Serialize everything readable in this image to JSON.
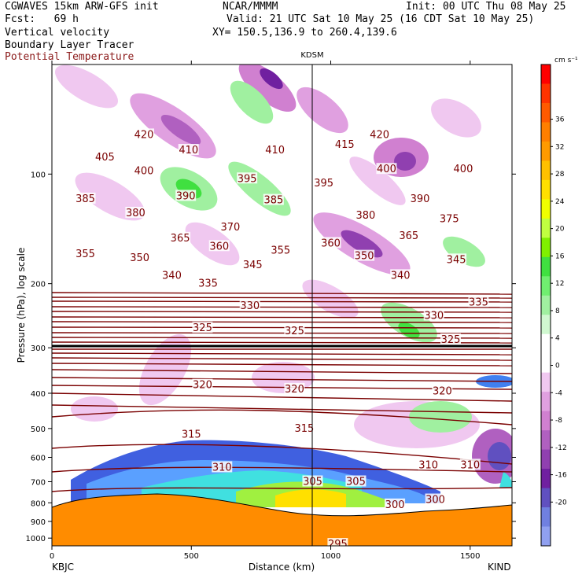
{
  "header": {
    "model": "CGWAVES 15km ARW-GFS init",
    "org": "NCAR/MMMM",
    "init": "Init: 00 UTC Thu 08 May 25",
    "fcst": "Fcst:   69 h",
    "valid": "Valid: 21 UTC Sat 10 May 25 (16 CDT Sat 10 May 25)",
    "field1": "Vertical velocity",
    "field2": "Boundary Layer Tracer",
    "field3": "Potential Temperature",
    "xy": "XY= 150.5,136.9 to 260.4,139.6",
    "field3_color": "#8b1a1a"
  },
  "chart_data": {
    "type": "cross-section",
    "xlabel": "Distance (km)",
    "ylabel": "Pressure (hPa), log scale",
    "x_range": [
      0,
      1650
    ],
    "x_ticks": [
      0,
      500,
      1000,
      1500
    ],
    "y_range_hpa": [
      1050,
      50
    ],
    "y_ticks": [
      100,
      200,
      300,
      400,
      500,
      600,
      700,
      800,
      900,
      1000
    ],
    "station_left": "KBJC",
    "station_right": "KIND",
    "station_mid": "KDSM",
    "station_mid_km": 930,
    "colorbar_unit": "cm s⁻¹",
    "colorbar_ticks": [
      36,
      32,
      28,
      24,
      20,
      16,
      12,
      8,
      4,
      0,
      -4,
      -8,
      -12,
      -16,
      -20
    ],
    "colorbar_colors": [
      "#ff0000",
      "#ff3300",
      "#ff5a00",
      "#ff7f00",
      "#ff9a00",
      "#ffc000",
      "#ffe000",
      "#f0ff00",
      "#c0ff40",
      "#80f000",
      "#40e040",
      "#70ee70",
      "#a0f0a0",
      "#d0f8d0",
      "#ffffff",
      "#ffffff",
      "#f0c8f0",
      "#e0a0e0",
      "#d080d0",
      "#b060c0",
      "#9040b0",
      "#7020a0",
      "#6050c0",
      "#7080e0",
      "#90a0f0"
    ],
    "theta_labels": [
      {
        "v": "420",
        "x": 330,
        "p": 78
      },
      {
        "v": "420",
        "x": 1175,
        "p": 78
      },
      {
        "v": "410",
        "x": 490,
        "p": 86
      },
      {
        "v": "410",
        "x": 800,
        "p": 86
      },
      {
        "v": "415",
        "x": 1050,
        "p": 83
      },
      {
        "v": "405",
        "x": 190,
        "p": 90
      },
      {
        "v": "400",
        "x": 330,
        "p": 98
      },
      {
        "v": "400",
        "x": 1200,
        "p": 97
      },
      {
        "v": "400",
        "x": 1475,
        "p": 97
      },
      {
        "v": "395",
        "x": 700,
        "p": 103
      },
      {
        "v": "395",
        "x": 975,
        "p": 106
      },
      {
        "v": "390",
        "x": 480,
        "p": 115
      },
      {
        "v": "390",
        "x": 1320,
        "p": 117
      },
      {
        "v": "385",
        "x": 120,
        "p": 117
      },
      {
        "v": "385",
        "x": 795,
        "p": 118
      },
      {
        "v": "380",
        "x": 300,
        "p": 128
      },
      {
        "v": "380",
        "x": 1125,
        "p": 130
      },
      {
        "v": "375",
        "x": 1425,
        "p": 133
      },
      {
        "v": "370",
        "x": 640,
        "p": 140
      },
      {
        "v": "365",
        "x": 460,
        "p": 150
      },
      {
        "v": "360",
        "x": 600,
        "p": 158
      },
      {
        "v": "360",
        "x": 1000,
        "p": 155
      },
      {
        "v": "365",
        "x": 1280,
        "p": 148
      },
      {
        "v": "355",
        "x": 120,
        "p": 166
      },
      {
        "v": "350",
        "x": 315,
        "p": 170
      },
      {
        "v": "355",
        "x": 820,
        "p": 162
      },
      {
        "v": "350",
        "x": 1120,
        "p": 168
      },
      {
        "v": "345",
        "x": 1450,
        "p": 172
      },
      {
        "v": "345",
        "x": 720,
        "p": 178
      },
      {
        "v": "340",
        "x": 430,
        "p": 190
      },
      {
        "v": "340",
        "x": 1250,
        "p": 190
      },
      {
        "v": "335",
        "x": 560,
        "p": 200
      },
      {
        "v": "335",
        "x": 1530,
        "p": 225
      },
      {
        "v": "330",
        "x": 710,
        "p": 230
      },
      {
        "v": "330",
        "x": 1370,
        "p": 245
      },
      {
        "v": "325",
        "x": 540,
        "p": 265
      },
      {
        "v": "325",
        "x": 870,
        "p": 270
      },
      {
        "v": "325",
        "x": 1430,
        "p": 285
      },
      {
        "v": "320",
        "x": 540,
        "p": 380
      },
      {
        "v": "320",
        "x": 870,
        "p": 390
      },
      {
        "v": "320",
        "x": 1400,
        "p": 395
      },
      {
        "v": "315",
        "x": 500,
        "p": 520
      },
      {
        "v": "315",
        "x": 905,
        "p": 500
      },
      {
        "v": "310",
        "x": 610,
        "p": 640
      },
      {
        "v": "310",
        "x": 1350,
        "p": 630
      },
      {
        "v": "310",
        "x": 1500,
        "p": 630
      },
      {
        "v": "305",
        "x": 935,
        "p": 700
      },
      {
        "v": "305",
        "x": 1090,
        "p": 700
      },
      {
        "v": "300",
        "x": 1230,
        "p": 810
      },
      {
        "v": "300",
        "x": 1375,
        "p": 785
      },
      {
        "v": "295",
        "x": 1025,
        "p": 1040
      }
    ]
  }
}
